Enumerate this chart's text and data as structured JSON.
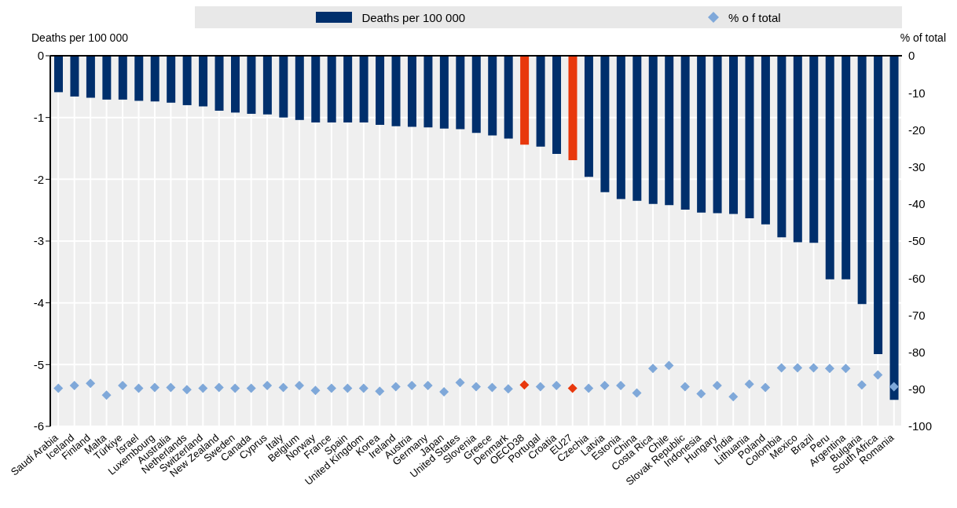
{
  "chart_data": {
    "type": "bar",
    "ylabel": "Deaths per 100 000",
    "y2label": "% of total",
    "categories": [
      "Saudi Arabia",
      "Iceland",
      "Finland",
      "Malta",
      "Türkiye",
      "Israel",
      "Luxembourg",
      "Australia",
      "Netherlands",
      "Switzerland",
      "New Zealand",
      "Sweden",
      "Canada",
      "Cyprus",
      "Italy",
      "Belgium",
      "Norway",
      "France",
      "Spain",
      "United Kingdom",
      "Korea",
      "Ireland",
      "Austria",
      "Germany",
      "Japan",
      "United States",
      "Slovenia",
      "Greece",
      "Denmark",
      "OECD38",
      "Portugal",
      "Croatia",
      "EU27",
      "Czechia",
      "Latvia",
      "Estonia",
      "China",
      "Costa Rica",
      "Chile",
      "Slovak Republic",
      "Indonesia",
      "Hungary",
      "India",
      "Lithuania",
      "Poland",
      "Colombia",
      "Mexico",
      "Brazil",
      "Peru",
      "Argentina",
      "Bulgaria",
      "South Africa",
      "Romania"
    ],
    "series": [
      {
        "name": "Deaths per 100 000",
        "color": "#002f6c",
        "colors": [
          "#002f6c",
          "#002f6c",
          "#002f6c",
          "#002f6c",
          "#002f6c",
          "#002f6c",
          "#002f6c",
          "#002f6c",
          "#002f6c",
          "#002f6c",
          "#002f6c",
          "#002f6c",
          "#002f6c",
          "#002f6c",
          "#002f6c",
          "#002f6c",
          "#002f6c",
          "#002f6c",
          "#002f6c",
          "#002f6c",
          "#002f6c",
          "#002f6c",
          "#002f6c",
          "#002f6c",
          "#002f6c",
          "#002f6c",
          "#002f6c",
          "#002f6c",
          "#002f6c",
          "#e8380d",
          "#002f6c",
          "#002f6c",
          "#e8380d",
          "#002f6c",
          "#002f6c",
          "#002f6c",
          "#002f6c",
          "#002f6c",
          "#002f6c",
          "#002f6c",
          "#002f6c",
          "#002f6c",
          "#002f6c",
          "#002f6c",
          "#002f6c",
          "#002f6c",
          "#002f6c",
          "#002f6c",
          "#002f6c",
          "#002f6c",
          "#002f6c",
          "#002f6c",
          "#002f6c"
        ],
        "values": [
          -0.59,
          -0.66,
          -0.68,
          -0.71,
          -0.71,
          -0.73,
          -0.74,
          -0.76,
          -0.8,
          -0.82,
          -0.89,
          -0.92,
          -0.94,
          -0.95,
          -1.0,
          -1.04,
          -1.08,
          -1.08,
          -1.08,
          -1.08,
          -1.12,
          -1.14,
          -1.15,
          -1.16,
          -1.18,
          -1.19,
          -1.25,
          -1.29,
          -1.34,
          -1.44,
          -1.47,
          -1.59,
          -1.69,
          -1.96,
          -2.21,
          -2.32,
          -2.35,
          -2.4,
          -2.42,
          -2.49,
          -2.54,
          -2.55,
          -2.56,
          -2.63,
          -2.73,
          -2.94,
          -3.02,
          -3.03,
          -3.62,
          -3.62,
          -4.02,
          -4.83,
          -5.57
        ]
      },
      {
        "name": "% o f total",
        "type": "scatter",
        "axis": "y2",
        "color": "#7fa8d9",
        "colors": [
          "#7fa8d9",
          "#7fa8d9",
          "#7fa8d9",
          "#7fa8d9",
          "#7fa8d9",
          "#7fa8d9",
          "#7fa8d9",
          "#7fa8d9",
          "#7fa8d9",
          "#7fa8d9",
          "#7fa8d9",
          "#7fa8d9",
          "#7fa8d9",
          "#7fa8d9",
          "#7fa8d9",
          "#7fa8d9",
          "#7fa8d9",
          "#7fa8d9",
          "#7fa8d9",
          "#7fa8d9",
          "#7fa8d9",
          "#7fa8d9",
          "#7fa8d9",
          "#7fa8d9",
          "#7fa8d9",
          "#7fa8d9",
          "#7fa8d9",
          "#7fa8d9",
          "#7fa8d9",
          "#e8380d",
          "#7fa8d9",
          "#7fa8d9",
          "#e8380d",
          "#7fa8d9",
          "#7fa8d9",
          "#7fa8d9",
          "#7fa8d9",
          "#7fa8d9",
          "#7fa8d9",
          "#7fa8d9",
          "#7fa8d9",
          "#7fa8d9",
          "#7fa8d9",
          "#7fa8d9",
          "#7fa8d9",
          "#7fa8d9",
          "#7fa8d9",
          "#7fa8d9",
          "#7fa8d9",
          "#7fa8d9",
          "#7fa8d9",
          "#7fa8d9",
          "#7fa8d9"
        ],
        "values": [
          -89.7,
          -89,
          -88.4,
          -91.6,
          -89,
          -89.7,
          -89.5,
          -89.5,
          -90.1,
          -89.7,
          -89.5,
          -89.7,
          -89.7,
          -89,
          -89.5,
          -89,
          -90.3,
          -89.7,
          -89.7,
          -89.7,
          -90.5,
          -89.3,
          -89,
          -89,
          -90.7,
          -88.2,
          -89.3,
          -89.5,
          -89.9,
          -88.8,
          -89.3,
          -89,
          -89.7,
          -89.7,
          -89,
          -89,
          -91,
          -84.4,
          -83.6,
          -89.3,
          -91.2,
          -89,
          -92,
          -88.6,
          -89.5,
          -84.2,
          -84.2,
          -84.2,
          -84.4,
          -84.4,
          -88.8,
          -86.1,
          -89.3
        ]
      }
    ],
    "ylim": [
      -6,
      0
    ],
    "yticks": [
      -6,
      -5,
      -4,
      -3,
      -2,
      -1,
      0
    ],
    "y2lim": [
      -100,
      0
    ],
    "y2ticks": [
      -100,
      -90,
      -80,
      -70,
      -60,
      -50,
      -40,
      -30,
      -20,
      -10,
      0
    ],
    "grid": true,
    "legend": "top",
    "marker": "diamond"
  }
}
